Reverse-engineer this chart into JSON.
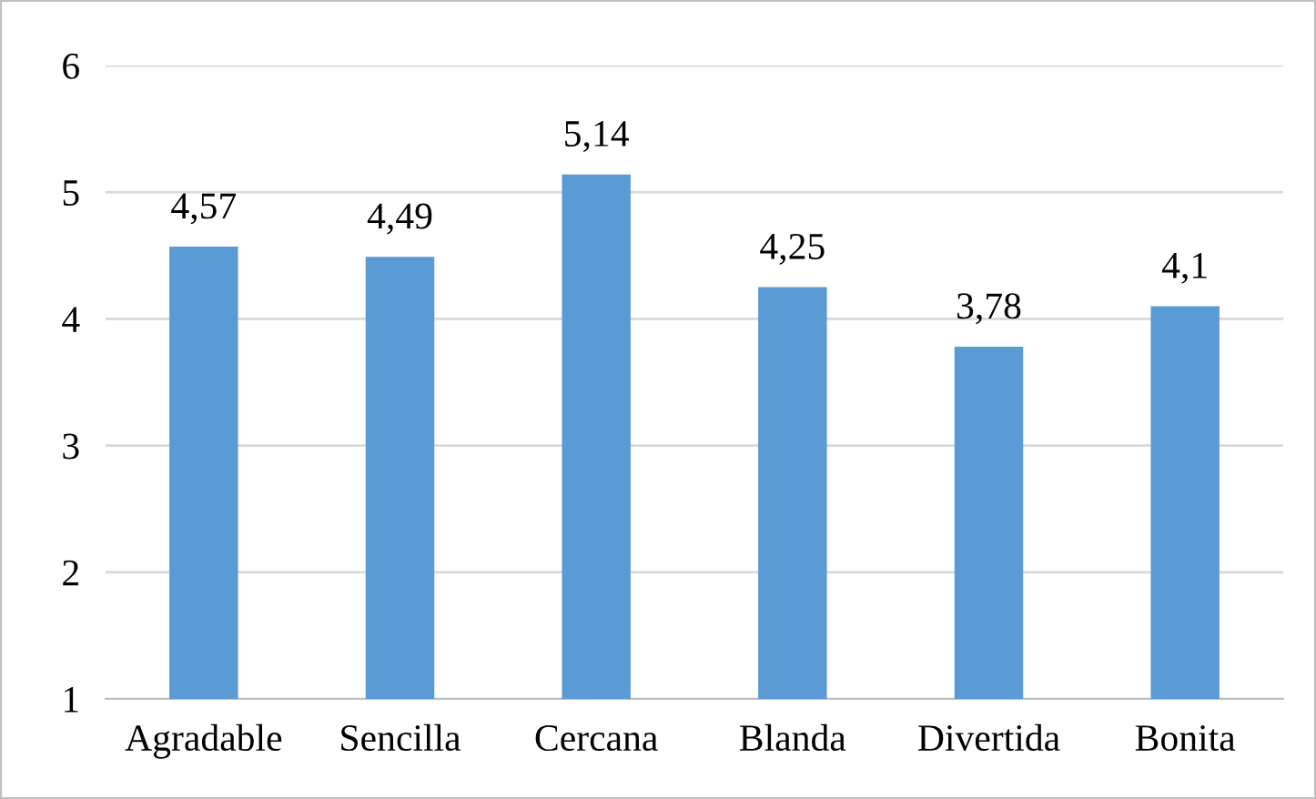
{
  "chart_data": {
    "type": "bar",
    "categories": [
      "Agradable",
      "Sencilla",
      "Cercana",
      "Blanda",
      "Divertida",
      "Bonita"
    ],
    "values": [
      4.57,
      4.49,
      5.14,
      4.25,
      3.78,
      4.1
    ],
    "value_labels": [
      "4,57",
      "4,49",
      "5,14",
      "4,25",
      "3,78",
      "4,1"
    ],
    "color": "#5b9bd5",
    "ylim": [
      1,
      6
    ],
    "yticks": [
      1,
      2,
      3,
      4,
      5,
      6
    ],
    "grid": "y",
    "legend": false
  }
}
